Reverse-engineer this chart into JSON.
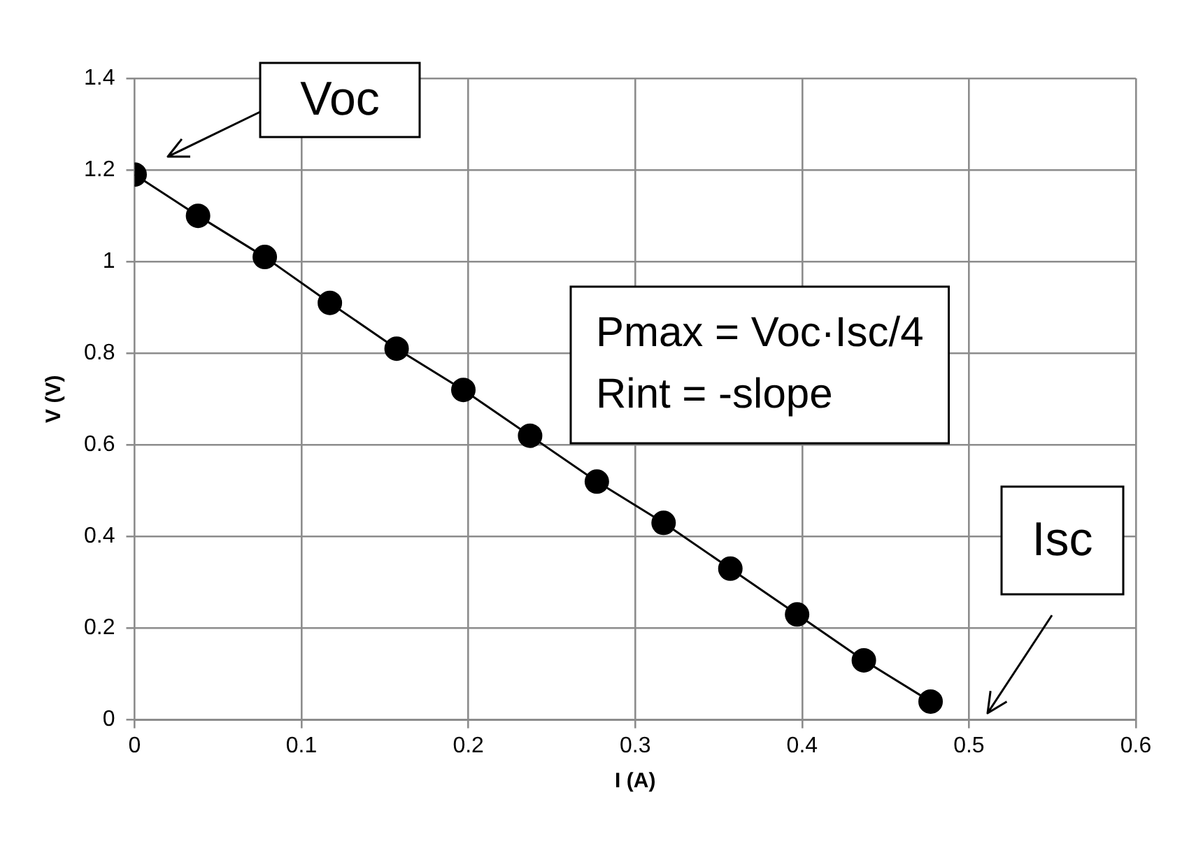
{
  "chart_data": {
    "type": "line",
    "xlabel": "I (A)",
    "ylabel": "V (V)",
    "x": [
      0,
      0.038,
      0.078,
      0.117,
      0.157,
      0.197,
      0.237,
      0.277,
      0.317,
      0.357,
      0.397,
      0.437,
      0.477
    ],
    "series": [
      {
        "color": "#000000",
        "values": [
          1.19,
          1.1,
          1.01,
          0.91,
          0.81,
          0.72,
          0.62,
          0.52,
          0.43,
          0.33,
          0.23,
          0.13,
          0.04
        ]
      }
    ],
    "xlim": [
      0,
      0.6
    ],
    "xticks": [
      0,
      0.1,
      0.2,
      0.3,
      0.4,
      0.5,
      0.6
    ],
    "ylim": [
      0,
      1.4
    ],
    "yticks": [
      0,
      0.2,
      0.4,
      0.6,
      0.8,
      1,
      1.2,
      1.4
    ],
    "grid": true,
    "legend": false,
    "marker": "circle",
    "line_style": "solid",
    "annotations": [
      "Voc",
      "Isc",
      "Pmax = Voc·Isc/4",
      "Rint = -slope"
    ]
  }
}
